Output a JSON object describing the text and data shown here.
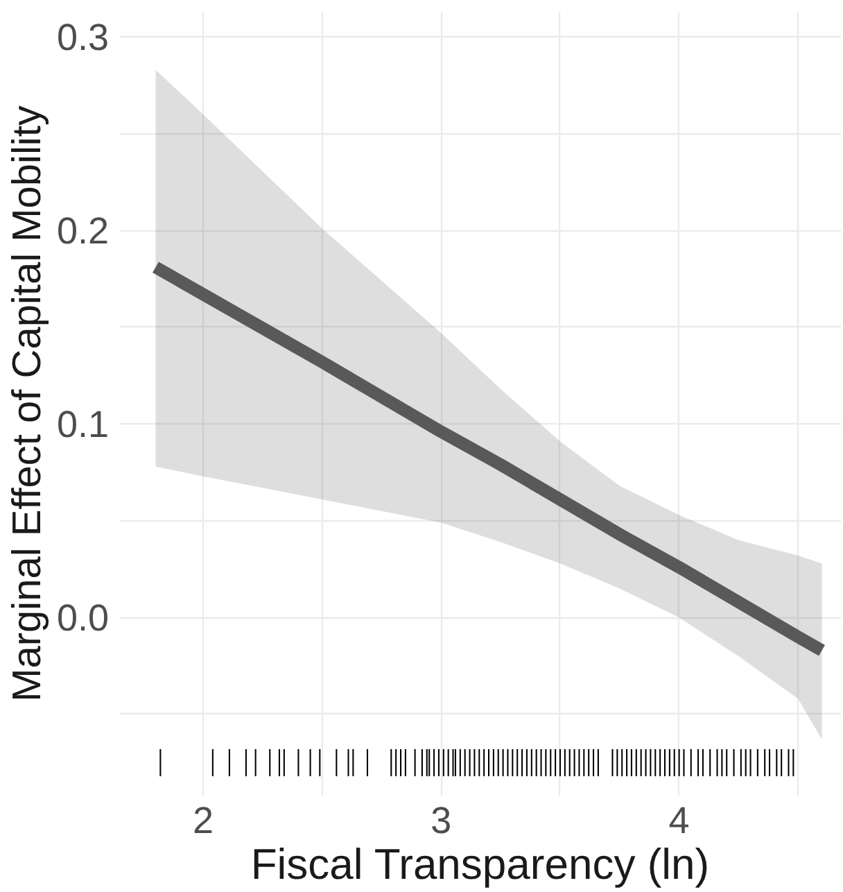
{
  "chart_data": {
    "type": "line",
    "xlabel": "Fiscal Transparency (ln)",
    "ylabel": "Marginal Effect of Capital Mobility",
    "xlim": [
      1.65,
      4.68
    ],
    "ylim": [
      -0.092,
      0.313
    ],
    "xticks": [
      2,
      {
        "value": 2.5,
        "label": null
      },
      3,
      {
        "value": 3.5,
        "label": null
      },
      4,
      {
        "value": 4.5,
        "label": null
      }
    ],
    "yticks": [
      {
        "value": -0.05,
        "label": null
      },
      {
        "value": 0,
        "label": "0.0"
      },
      {
        "value": 0.05,
        "label": null
      },
      0.1,
      {
        "value": 0.15,
        "label": null
      },
      0.2,
      {
        "value": 0.25,
        "label": null
      },
      0.3
    ],
    "grid": true,
    "line_style": "solid",
    "series": [
      {
        "color": "#595959",
        "x": [
          1.8,
          2.0,
          2.5,
          3.0,
          3.25,
          3.5,
          3.75,
          4.0,
          4.25,
          4.5,
          4.6
        ],
        "values": [
          0.181,
          0.167,
          0.132,
          0.096,
          0.079,
          0.061,
          0.043,
          0.026,
          0.008,
          -0.01,
          -0.017
        ],
        "lower": [
          0.078,
          0.073,
          0.061,
          0.049,
          0.039,
          0.028,
          0.015,
          0.0,
          -0.02,
          -0.042,
          -0.063
        ],
        "upper": [
          0.283,
          0.26,
          0.201,
          0.147,
          0.118,
          0.091,
          0.068,
          0.053,
          0.04,
          0.032,
          0.028
        ]
      },
      {
        "type": "bar",
        "base": [
          -0.082,
          -0.082,
          -0.082,
          -0.082,
          -0.082,
          -0.082,
          -0.082,
          -0.082,
          -0.082,
          -0.082,
          -0.082,
          -0.082,
          -0.082,
          -0.082,
          -0.082,
          -0.082,
          -0.082,
          -0.082,
          -0.082,
          -0.082,
          -0.082,
          -0.082,
          -0.082,
          -0.082,
          -0.082,
          -0.082,
          -0.082,
          -0.082,
          -0.082,
          -0.082,
          -0.082,
          -0.082,
          -0.082,
          -0.082,
          -0.082,
          -0.082,
          -0.082,
          -0.082,
          -0.082,
          -0.082,
          -0.082,
          -0.082,
          -0.082,
          -0.082,
          -0.082,
          -0.082,
          -0.082,
          -0.082,
          -0.082,
          -0.082,
          -0.082,
          -0.082,
          -0.082,
          -0.082,
          -0.082,
          -0.082,
          -0.082,
          -0.082,
          -0.082,
          -0.082,
          -0.082,
          -0.082,
          -0.082,
          -0.082,
          -0.082,
          -0.082,
          -0.082,
          -0.082,
          -0.082,
          -0.082,
          -0.082,
          -0.082,
          -0.082,
          -0.082,
          -0.082,
          -0.082,
          -0.082,
          -0.082,
          -0.082,
          -0.082,
          -0.082,
          -0.082,
          -0.082,
          -0.082,
          -0.082,
          -0.082,
          -0.082,
          -0.082,
          -0.082,
          -0.082,
          -0.082,
          -0.082,
          -0.082
        ],
        "color": "#000000",
        "x": [
          1.82,
          2.04,
          2.11,
          2.18,
          2.22,
          2.28,
          2.32,
          2.34,
          2.4,
          2.45,
          2.49,
          2.56,
          2.61,
          2.63,
          2.69,
          2.79,
          2.81,
          2.83,
          2.85,
          2.89,
          2.92,
          2.94,
          2.95,
          2.97,
          2.99,
          3.01,
          3.03,
          3.05,
          3.06,
          3.08,
          3.1,
          3.12,
          3.14,
          3.16,
          3.18,
          3.2,
          3.22,
          3.24,
          3.26,
          3.28,
          3.3,
          3.32,
          3.34,
          3.36,
          3.38,
          3.4,
          3.42,
          3.44,
          3.46,
          3.48,
          3.5,
          3.52,
          3.54,
          3.56,
          3.58,
          3.6,
          3.62,
          3.64,
          3.66,
          3.72,
          3.74,
          3.76,
          3.78,
          3.8,
          3.82,
          3.84,
          3.86,
          3.88,
          3.9,
          3.92,
          3.94,
          3.96,
          3.98,
          4.0,
          4.02,
          4.05,
          4.08,
          4.1,
          4.13,
          4.16,
          4.18,
          4.2,
          4.23,
          4.26,
          4.28,
          4.3,
          4.33,
          4.36,
          4.38,
          4.41,
          4.43,
          4.46,
          4.48
        ],
        "values": [
          0.014,
          0.014,
          0.014,
          0.014,
          0.014,
          0.014,
          0.014,
          0.014,
          0.014,
          0.014,
          0.014,
          0.014,
          0.014,
          0.014,
          0.014,
          0.014,
          0.014,
          0.014,
          0.014,
          0.014,
          0.014,
          0.014,
          0.014,
          0.014,
          0.014,
          0.014,
          0.014,
          0.014,
          0.014,
          0.014,
          0.014,
          0.014,
          0.014,
          0.014,
          0.014,
          0.014,
          0.014,
          0.014,
          0.014,
          0.014,
          0.014,
          0.014,
          0.014,
          0.014,
          0.014,
          0.014,
          0.014,
          0.014,
          0.014,
          0.014,
          0.014,
          0.014,
          0.014,
          0.014,
          0.014,
          0.014,
          0.014,
          0.014,
          0.014,
          0.014,
          0.014,
          0.014,
          0.014,
          0.014,
          0.014,
          0.014,
          0.014,
          0.014,
          0.014,
          0.014,
          0.014,
          0.014,
          0.014,
          0.014,
          0.014,
          0.014,
          0.014,
          0.014,
          0.014,
          0.014,
          0.014,
          0.014,
          0.014,
          0.014,
          0.014,
          0.014,
          0.014,
          0.014,
          0.014,
          0.014,
          0.014,
          0.014,
          0.014
        ]
      }
    ]
  }
}
